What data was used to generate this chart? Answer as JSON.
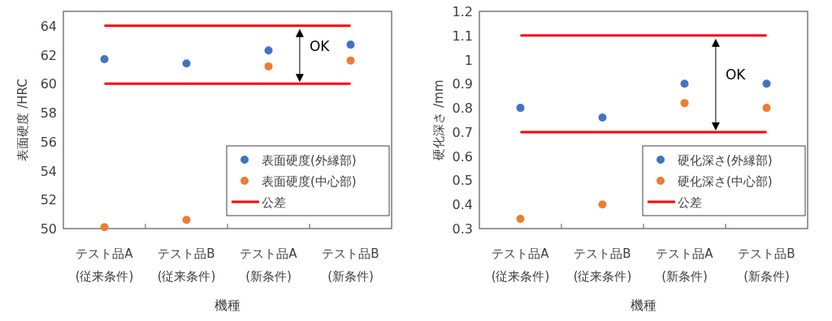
{
  "chart_data": [
    {
      "type": "scatter",
      "xlabel": "機種",
      "ylabel": "表面硬度 /HRC",
      "categories": [
        "テスト品A (従来条件)",
        "テスト品B (従来条件)",
        "テスト品A (新条件)",
        "テスト品B (新条件)"
      ],
      "series": [
        {
          "name": "表面硬度(外縁部)",
          "color": "#4472c4",
          "values": [
            61.7,
            61.4,
            62.3,
            62.7
          ]
        },
        {
          "name": "表面硬度(中心部)",
          "color": "#ed7d31",
          "values": [
            50.1,
            50.6,
            61.2,
            61.6
          ]
        }
      ],
      "ref_lines": [
        {
          "axis": "y",
          "value": 64,
          "label": "公差",
          "color": "#ff0000"
        },
        {
          "axis": "y",
          "value": 60,
          "color": "#ff0000"
        }
      ],
      "annotations": [
        "OK"
      ],
      "ylim": [
        50,
        65
      ],
      "yticks": [
        50,
        52,
        54,
        56,
        58,
        60,
        62,
        64
      ],
      "marker": "circle",
      "legend": "bottom right"
    },
    {
      "type": "scatter",
      "xlabel": "機種",
      "ylabel": "硬化深さ /mm",
      "categories": [
        "テスト品A (従来条件)",
        "テスト品B (従来条件)",
        "テスト品A (新条件)",
        "テスト品B (新条件)"
      ],
      "series": [
        {
          "name": "硬化深さ(外縁部)",
          "color": "#4472c4",
          "values": [
            0.8,
            0.76,
            0.9,
            0.9
          ]
        },
        {
          "name": "硬化深さ(中心部)",
          "color": "#ed7d31",
          "values": [
            0.34,
            0.4,
            0.82,
            0.8
          ]
        }
      ],
      "ref_lines": [
        {
          "axis": "y",
          "value": 1.1,
          "label": "公差",
          "color": "#ff0000"
        },
        {
          "axis": "y",
          "value": 0.7,
          "color": "#ff0000"
        }
      ],
      "annotations": [
        "OK"
      ],
      "ylim": [
        0.3,
        1.2
      ],
      "yticks": [
        0.3,
        0.4,
        0.5,
        0.6,
        0.7,
        0.8,
        0.9,
        1,
        1.1,
        1.2
      ],
      "marker": "circle",
      "legend": "bottom right"
    }
  ]
}
